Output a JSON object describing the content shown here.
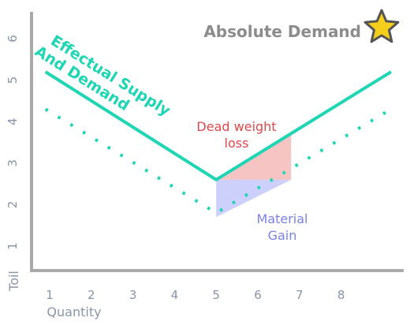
{
  "chart_data": {
    "type": "line",
    "title": "",
    "xlabel": "Quantity",
    "ylabel": "Toil",
    "x_ticks": [
      "1",
      "2",
      "3",
      "4",
      "5",
      "6",
      "7",
      "8"
    ],
    "y_ticks": [
      "1",
      "2",
      "3",
      "4",
      "5",
      "6"
    ],
    "xlim": [
      0.55,
      9.3
    ],
    "ylim": [
      0.45,
      6.45
    ],
    "grid": false,
    "series": [
      {
        "name": "",
        "style": "solid",
        "color": "#1fd6b4",
        "points": [
          [
            0.9,
            5.2
          ],
          [
            5.0,
            2.6
          ],
          [
            9.2,
            5.2
          ]
        ]
      },
      {
        "name": "",
        "style": "dotted",
        "color": "#1fd6b4",
        "points": [
          [
            0.9,
            4.3
          ],
          [
            5.0,
            1.8
          ],
          [
            9.2,
            4.3
          ]
        ]
      }
    ],
    "regions": [
      {
        "label": "Dead weight loss",
        "color": "#f7c4c4",
        "points": [
          [
            5.0,
            2.6
          ],
          [
            6.8,
            3.7
          ],
          [
            6.8,
            2.6
          ]
        ]
      },
      {
        "label": "Material Gain",
        "color": "#cdd0fa",
        "points": [
          [
            5.0,
            2.6
          ],
          [
            6.8,
            2.6
          ],
          [
            5.0,
            1.7
          ]
        ]
      }
    ],
    "annotations": {
      "absolute_demand": "Absolute Demand",
      "effectual_line1": "Effectual Supply",
      "effectual_line2": "And Demand",
      "dead_line1": "Dead weight",
      "dead_line2": "loss",
      "gain_line1": "Material",
      "gain_line2": "Gain"
    },
    "star_color": "#f5cf1c"
  }
}
